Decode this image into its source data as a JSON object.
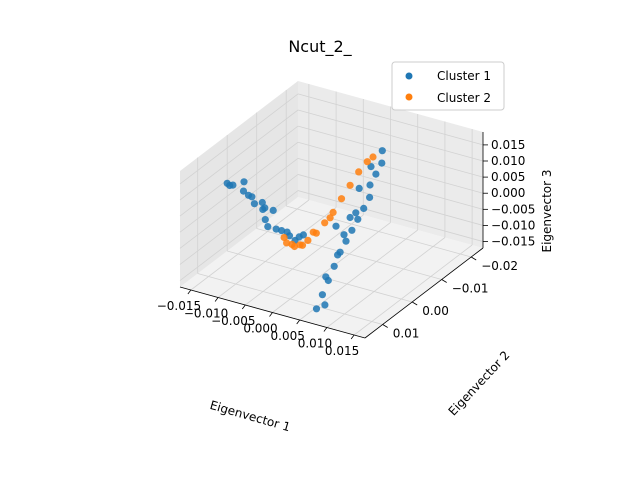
{
  "chart_data": {
    "type": "scatter",
    "projection": "3d",
    "title": "Ncut_2_",
    "xlabel": "Eigenvector 1",
    "ylabel": "Eigenvector 2",
    "zlabel": "Eigenvector 3",
    "x_ticks": [
      "−0.015",
      "−0.010",
      "−0.005",
      "0.000",
      "0.005",
      "0.010",
      "0.015"
    ],
    "y_ticks": [
      "−0.02",
      "−0.01",
      "0.00",
      "0.01"
    ],
    "z_ticks": [
      "−0.015",
      "−0.010",
      "−0.005",
      "0.000",
      "0.005",
      "0.010",
      "0.015"
    ],
    "xlim": [
      -0.017,
      0.017
    ],
    "ylim": [
      -0.024,
      0.016
    ],
    "zlim": [
      -0.017,
      0.019
    ],
    "grid": true,
    "legend": "top-right",
    "series": [
      {
        "name": "Cluster 1",
        "color": "#1f77b4",
        "points": [
          [
            -0.017,
            0.0,
            0.004
          ],
          [
            -0.0165,
            -0.001,
            0.003
          ],
          [
            -0.016,
            0.001,
            0.0045
          ],
          [
            -0.015,
            -0.002,
            0.004
          ],
          [
            -0.014,
            0.0,
            0.003
          ],
          [
            -0.013,
            -0.001,
            0.001
          ],
          [
            -0.012,
            0.0,
            0.0
          ],
          [
            -0.011,
            -0.001,
            -0.002
          ],
          [
            -0.01,
            0.0,
            -0.004
          ],
          [
            -0.009,
            0.001,
            -0.005
          ],
          [
            -0.008,
            0.0,
            -0.006
          ],
          [
            -0.007,
            0.0,
            -0.006
          ],
          [
            -0.006,
            0.0,
            -0.006
          ],
          [
            -0.005,
            0.001,
            -0.006
          ],
          [
            -0.004,
            0.001,
            -0.007
          ],
          [
            -0.0035,
            0.0005,
            -0.006
          ],
          [
            -0.003,
            0.0,
            -0.0055
          ],
          [
            -0.012,
            0.002,
            0.004
          ],
          [
            -0.01,
            0.001,
            0.002
          ],
          [
            -0.009,
            0.002,
            0.0015
          ],
          [
            -0.008,
            0.001,
            0.0005
          ],
          [
            0.005,
            -0.012,
            0.016
          ],
          [
            0.006,
            -0.01,
            0.014
          ],
          [
            0.006,
            -0.008,
            0.012
          ],
          [
            0.006,
            -0.006,
            0.01
          ],
          [
            0.007,
            -0.004,
            0.008
          ],
          [
            0.007,
            -0.002,
            0.006
          ],
          [
            0.007,
            0.0,
            0.004
          ],
          [
            0.007,
            0.002,
            0.002
          ],
          [
            0.007,
            0.004,
            0.0
          ],
          [
            0.007,
            0.006,
            -0.002
          ],
          [
            0.007,
            0.008,
            -0.005
          ],
          [
            0.007,
            0.01,
            -0.008
          ],
          [
            0.007,
            0.012,
            -0.011
          ],
          [
            0.007,
            0.014,
            -0.014
          ],
          [
            0.008,
            0.013,
            -0.013
          ],
          [
            0.004,
            -0.01,
            0.012
          ],
          [
            0.004,
            -0.006,
            0.008
          ],
          [
            0.005,
            -0.003,
            0.003
          ],
          [
            0.005,
            0.001,
            -0.001
          ],
          [
            0.006,
            0.005,
            -0.004
          ],
          [
            0.006,
            0.009,
            -0.008
          ],
          [
            0.003,
            0.0,
            0.0
          ],
          [
            0.0045,
            -0.002,
            0.002
          ]
        ]
      },
      {
        "name": "Cluster 2",
        "color": "#ff7f0e",
        "points": [
          [
            -0.006,
            0.001,
            -0.007
          ],
          [
            -0.005,
            0.002,
            -0.0075
          ],
          [
            -0.004,
            0.002,
            -0.0075
          ],
          [
            -0.003,
            0.003,
            -0.007
          ],
          [
            -0.002,
            0.003,
            -0.006
          ],
          [
            -0.001,
            0.004,
            -0.005
          ],
          [
            0.0,
            0.004,
            -0.003
          ],
          [
            0.001,
            0.003,
            -0.001
          ],
          [
            0.002,
            0.002,
            0.002
          ],
          [
            0.003,
            0.001,
            0.005
          ],
          [
            0.004,
            0.0,
            0.009
          ],
          [
            0.0045,
            -0.002,
            0.012
          ],
          [
            0.005,
            -0.004,
            0.015
          ],
          [
            0.0055,
            -0.006,
            0.017
          ],
          [
            0.006,
            -0.007,
            0.018
          ],
          [
            0.003,
            0.002,
            0.004
          ],
          [
            0.001,
            0.004,
            0.0
          ]
        ]
      }
    ]
  }
}
